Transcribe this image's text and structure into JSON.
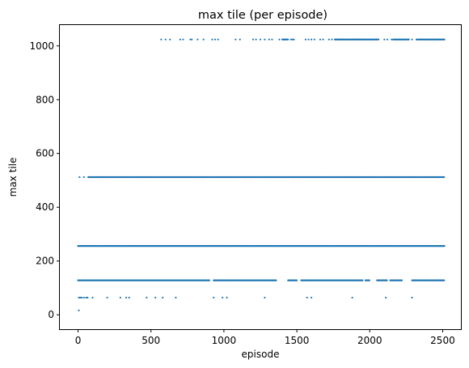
{
  "chart_data": {
    "type": "scatter",
    "title": "max tile (per episode)",
    "xlabel": "episode",
    "ylabel": "max tile",
    "xlim": [
      -125,
      2625
    ],
    "ylim": [
      -53.5,
      1077.5
    ],
    "xticks": [
      0,
      500,
      1000,
      1500,
      2000,
      2500
    ],
    "yticks": [
      0,
      200,
      400,
      600,
      800,
      1000
    ],
    "grid": false,
    "color": "#1f77b4",
    "series": [
      {
        "values_note": "",
        "points": [
          {
            "level": 16,
            "x": [
              5
            ]
          },
          {
            "level": 64,
            "x": [
              5,
              15,
              25,
              40,
              55,
              65,
              100,
              200,
              290,
              330,
              350,
              470,
              530,
              580,
              670,
              930,
              990,
              1020,
              1280,
              1570,
              1600,
              1880,
              2110,
              2290
            ]
          },
          {
            "level": 128,
            "x_runs": [
              [
                0,
                900
              ],
              [
                930,
                1360
              ],
              [
                1440,
                1500
              ],
              [
                1530,
                1950
              ],
              [
                1970,
                2000
              ],
              [
                2050,
                2120
              ],
              [
                2140,
                2220
              ],
              [
                2290,
                2510
              ]
            ]
          },
          {
            "level": 256,
            "x_runs": [
              [
                0,
                2512
              ]
            ]
          },
          {
            "level": 512,
            "x": [
              10,
              40
            ],
            "x_runs": [
              [
                70,
                2512
              ]
            ]
          },
          {
            "level": 1024,
            "x": [
              570,
              600,
              630,
              700,
              720,
              770,
              780,
              820,
              860,
              920,
              940,
              960,
              1080,
              1110,
              1200,
              1220,
              1250,
              1280,
              1310,
              1330,
              1380,
              1420,
              1460,
              1470,
              1480,
              1560,
              1580,
              1600,
              1620,
              1660,
              1680,
              1720,
              1740,
              1780,
              1880,
              2100,
              2120,
              2150,
              2290
            ],
            "x_runs": [
              [
                1400,
                1440
              ],
              [
                1760,
                2060
              ],
              [
                2160,
                2270
              ],
              [
                2320,
                2512
              ]
            ]
          }
        ]
      }
    ]
  }
}
